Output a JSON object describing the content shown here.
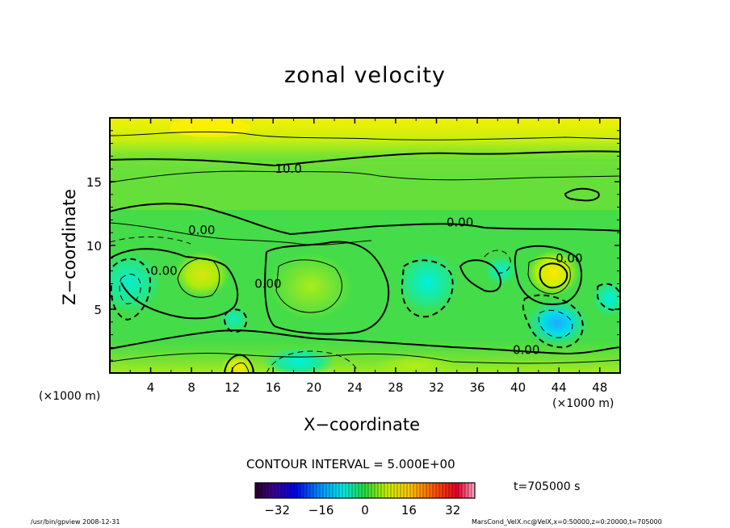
{
  "chart_data": {
    "type": "heatmap",
    "title": "zonal velocity",
    "xlabel": "X−coordinate",
    "ylabel": "Z−coordinate",
    "x_unit": "(×1000 m)",
    "y_unit": "(×1000 m)",
    "xlim": [
      0,
      50
    ],
    "ylim": [
      0,
      20
    ],
    "x_ticks": [
      "4",
      "8",
      "12",
      "16",
      "20",
      "24",
      "28",
      "32",
      "36",
      "40",
      "44",
      "48"
    ],
    "y_ticks": [
      "5",
      "10",
      "15"
    ],
    "contour_interval_text": "CONTOUR INTERVAL = 5.000E+00",
    "contour_labels": [
      {
        "text": "10.0",
        "x": 17.5,
        "z": 16.0
      },
      {
        "text": "0.00",
        "x": 9.0,
        "z": 11.2
      },
      {
        "text": "0.00",
        "x": 34.3,
        "z": 11.8
      },
      {
        "text": "0.00",
        "x": 5.3,
        "z": 8.0
      },
      {
        "text": "0.00",
        "x": 15.5,
        "z": 7.0
      },
      {
        "text": "0.00",
        "x": 45.0,
        "z": 9.0
      },
      {
        "text": "0.00",
        "x": 40.8,
        "z": 1.8
      }
    ],
    "colorbar": {
      "range": [
        -40,
        40
      ],
      "ticks": [
        "−32",
        "−16",
        "0",
        "16",
        "32"
      ],
      "tick_values": [
        -32,
        -16,
        0,
        16,
        32
      ]
    },
    "grid": false
  },
  "time_label": "t=705000  s",
  "footer_left": "/usr/bin/gpview   2008-12-31",
  "footer_right": "MarsCond_VelX.nc@VelX,x=0:50000,z=0:20000,t=705000"
}
